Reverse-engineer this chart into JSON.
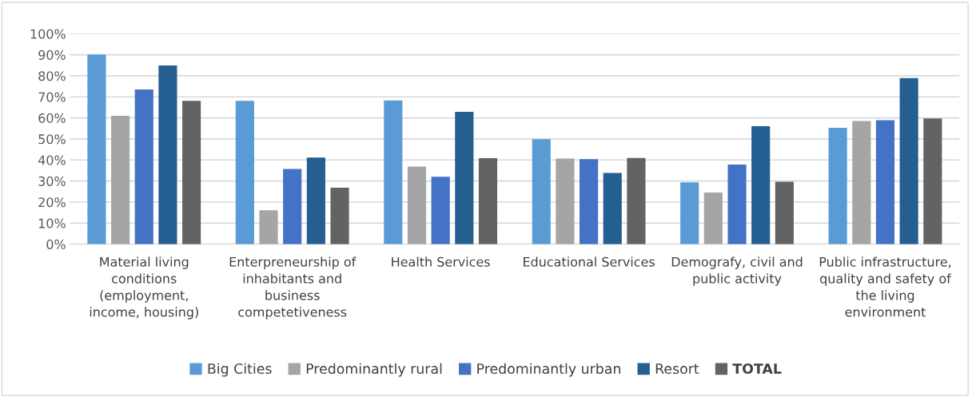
{
  "chart_data": {
    "type": "bar",
    "categories": [
      "Material living conditions (employment, income, housing)",
      "Enterpreneurship of inhabitants and business competetiveness",
      "Health Services",
      "Educational Services",
      "Demografy, civil and public activity",
      "Public infrastructure, quality and safety of the living environment"
    ],
    "series": [
      {
        "name": "Big Cities",
        "color": "#5b9bd5",
        "values": [
          90.1,
          68.1,
          68.3,
          49.9,
          29.4,
          55.3
        ]
      },
      {
        "name": "Predominantly rural",
        "color": "#a5a5a5",
        "values": [
          61.0,
          16.1,
          36.9,
          40.7,
          24.5,
          58.5
        ]
      },
      {
        "name": "Predominantly urban",
        "color": "#4472c4",
        "values": [
          73.5,
          35.7,
          32.0,
          40.4,
          37.8,
          58.9
        ]
      },
      {
        "name": "Resort",
        "color": "#255e91",
        "values": [
          84.9,
          41.2,
          62.9,
          33.8,
          56.1,
          78.9
        ]
      },
      {
        "name": "TOTAL",
        "color": "#636363",
        "values": [
          68.1,
          26.8,
          40.9,
          41.0,
          29.7,
          59.8
        ]
      }
    ],
    "ylim": [
      0,
      100
    ],
    "yticks": [
      {
        "value": 0,
        "label": "0%"
      },
      {
        "value": 10,
        "label": "10%"
      },
      {
        "value": 20,
        "label": "20%"
      },
      {
        "value": 30,
        "label": "30%"
      },
      {
        "value": 40,
        "label": "40%"
      },
      {
        "value": 50,
        "label": "50%"
      },
      {
        "value": 60,
        "label": "60%"
      },
      {
        "value": 70,
        "label": "70%"
      },
      {
        "value": 80,
        "label": "80%"
      },
      {
        "value": 90,
        "label": "90%"
      },
      {
        "value": 100,
        "label": "100%"
      }
    ],
    "grid": "y",
    "legend": "bottom"
  }
}
